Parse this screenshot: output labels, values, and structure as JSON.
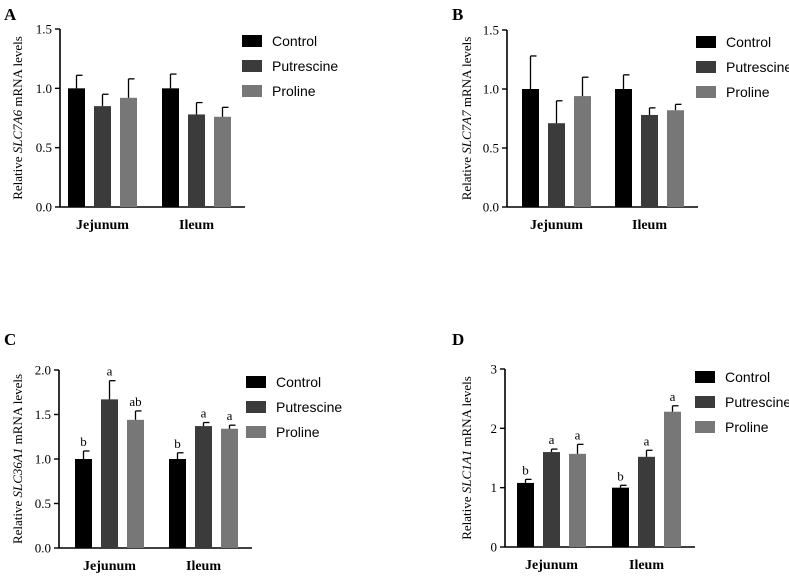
{
  "colors": {
    "Control": "#000000",
    "Putrescine": "#3b3b3b",
    "Proline": "#777777",
    "axis": "#000000"
  },
  "chart_data": [
    {
      "type": "bar",
      "panel_label": "A",
      "categories": [
        "Jejunum",
        "Ileum"
      ],
      "ylabel_prefix": "Relative ",
      "ylabel_gene": "SLC7A6",
      "ylabel_suffix": " mRNA levels",
      "ylim": [
        0,
        1.5
      ],
      "yticks": [
        "0.0",
        "0.5",
        "1.0",
        "1.5"
      ],
      "ytick_values": [
        0,
        0.5,
        1.0,
        1.5
      ],
      "legend": [
        "Control",
        "Putrescine",
        "Proline"
      ],
      "legend_position": "right",
      "series": [
        {
          "name": "Control",
          "values": [
            1.0,
            1.0
          ],
          "errors": [
            0.11,
            0.12
          ],
          "sig": [
            "",
            ""
          ]
        },
        {
          "name": "Putrescine",
          "values": [
            0.85,
            0.78
          ],
          "errors": [
            0.1,
            0.1
          ],
          "sig": [
            "",
            ""
          ]
        },
        {
          "name": "Proline",
          "values": [
            0.92,
            0.76
          ],
          "errors": [
            0.16,
            0.08
          ],
          "sig": [
            "",
            ""
          ]
        }
      ]
    },
    {
      "type": "bar",
      "panel_label": "B",
      "categories": [
        "Jejunum",
        "Ileum"
      ],
      "ylabel_prefix": "Relative ",
      "ylabel_gene": "SLC7A7",
      "ylabel_suffix": " mRNA levels",
      "ylim": [
        0,
        1.5
      ],
      "yticks": [
        "0.0",
        "0.5",
        "1.0",
        "1.5"
      ],
      "ytick_values": [
        0,
        0.5,
        1.0,
        1.5
      ],
      "legend": [
        "Control",
        "Putrescine",
        "Proline"
      ],
      "legend_position": "right",
      "series": [
        {
          "name": "Control",
          "values": [
            1.0,
            1.0
          ],
          "errors": [
            0.28,
            0.12
          ],
          "sig": [
            "",
            ""
          ]
        },
        {
          "name": "Putrescine",
          "values": [
            0.71,
            0.78
          ],
          "errors": [
            0.19,
            0.06
          ],
          "sig": [
            "",
            ""
          ]
        },
        {
          "name": "Proline",
          "values": [
            0.94,
            0.82
          ],
          "errors": [
            0.16,
            0.05
          ],
          "sig": [
            "",
            ""
          ]
        }
      ]
    },
    {
      "type": "bar",
      "panel_label": "C",
      "categories": [
        "Jejunum",
        "Ileum"
      ],
      "ylabel_prefix": "Relative ",
      "ylabel_gene": "SLC36A1",
      "ylabel_suffix": " mRNA levels",
      "ylim": [
        0,
        2.0
      ],
      "yticks": [
        "0.0",
        "0.5",
        "1.0",
        "1.5",
        "2.0"
      ],
      "ytick_values": [
        0,
        0.5,
        1.0,
        1.5,
        2.0
      ],
      "legend": [
        "Control",
        "Putrescine",
        "Proline"
      ],
      "legend_position": "right",
      "series": [
        {
          "name": "Control",
          "values": [
            1.0,
            1.0
          ],
          "errors": [
            0.09,
            0.07
          ],
          "sig": [
            "b",
            "b"
          ]
        },
        {
          "name": "Putrescine",
          "values": [
            1.67,
            1.37
          ],
          "errors": [
            0.21,
            0.04
          ],
          "sig": [
            "a",
            "a"
          ]
        },
        {
          "name": "Proline",
          "values": [
            1.44,
            1.34
          ],
          "errors": [
            0.1,
            0.04
          ],
          "sig": [
            "ab",
            "a"
          ]
        }
      ]
    },
    {
      "type": "bar",
      "panel_label": "D",
      "categories": [
        "Jejunum",
        "Ileum"
      ],
      "ylabel_prefix": "Relative ",
      "ylabel_gene": "SLC1A1",
      "ylabel_suffix": " mRNA levels",
      "ylim": [
        0,
        3
      ],
      "yticks": [
        "0",
        "1",
        "2",
        "3"
      ],
      "ytick_values": [
        0,
        1,
        2,
        3
      ],
      "legend": [
        "Control",
        "Putrescine",
        "Proline"
      ],
      "legend_position": "right",
      "series": [
        {
          "name": "Control",
          "values": [
            1.08,
            1.0
          ],
          "errors": [
            0.06,
            0.04
          ],
          "sig": [
            "b",
            "b"
          ]
        },
        {
          "name": "Putrescine",
          "values": [
            1.6,
            1.52
          ],
          "errors": [
            0.05,
            0.11
          ],
          "sig": [
            "a",
            "a"
          ]
        },
        {
          "name": "Proline",
          "values": [
            1.57,
            2.28
          ],
          "errors": [
            0.16,
            0.1
          ],
          "sig": [
            "a",
            "a"
          ]
        }
      ]
    }
  ]
}
